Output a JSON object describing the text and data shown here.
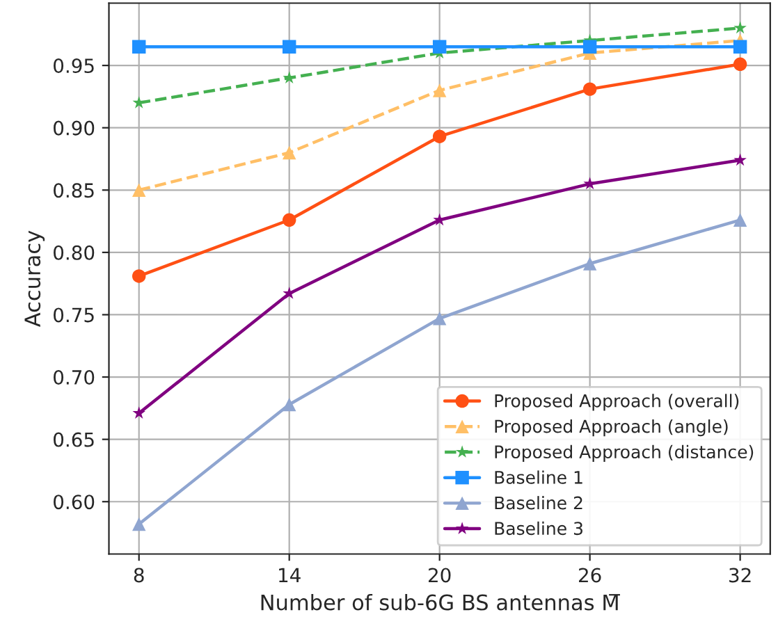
{
  "chart_data": {
    "type": "line",
    "xlabel": "Number of sub-6G BS antennas M̅",
    "ylabel": "Accuracy",
    "x": [
      8,
      14,
      20,
      26,
      32
    ],
    "xlim": [
      6.8,
      33.2
    ],
    "xticks": [
      8,
      14,
      20,
      26,
      32
    ],
    "ylim": [
      0.558,
      1.0
    ],
    "yticks": [
      {
        "value": 0.6,
        "label": "0.60"
      },
      {
        "value": 0.65,
        "label": "0.65"
      },
      {
        "value": 0.7,
        "label": "0.70"
      },
      {
        "value": 0.75,
        "label": "0.75"
      },
      {
        "value": 0.8,
        "label": "0.80"
      },
      {
        "value": 0.85,
        "label": "0.85"
      },
      {
        "value": 0.9,
        "label": "0.90"
      },
      {
        "value": 0.95,
        "label": "0.95"
      }
    ],
    "grid": true,
    "legend": "bottom right",
    "series": [
      {
        "name": "Proposed Approach (overall)",
        "color": "#ff5014",
        "marker": "circle",
        "line_style": "solid",
        "values": [
          0.781,
          0.826,
          0.893,
          0.931,
          0.951
        ]
      },
      {
        "name": "Proposed Approach (angle)",
        "color": "#ffbf66",
        "marker": "triangle",
        "line_style": "dashed",
        "values": [
          0.85,
          0.88,
          0.93,
          0.96,
          0.97
        ]
      },
      {
        "name": "Proposed Approach (distance)",
        "color": "#44b050",
        "marker": "star",
        "line_style": "dashed",
        "values": [
          0.92,
          0.94,
          0.96,
          0.97,
          0.98
        ]
      },
      {
        "name": "Baseline 1",
        "color": "#1e90ff",
        "marker": "square",
        "line_style": "solid",
        "values": [
          0.965,
          0.965,
          0.965,
          0.965,
          0.965
        ]
      },
      {
        "name": "Baseline 2",
        "color": "#8fa5d0",
        "marker": "triangle",
        "line_style": "solid",
        "values": [
          0.582,
          0.678,
          0.747,
          0.791,
          0.826
        ]
      },
      {
        "name": "Baseline 3",
        "color": "#800080",
        "marker": "star",
        "line_style": "solid",
        "values": [
          0.671,
          0.767,
          0.826,
          0.855,
          0.874
        ]
      }
    ]
  }
}
